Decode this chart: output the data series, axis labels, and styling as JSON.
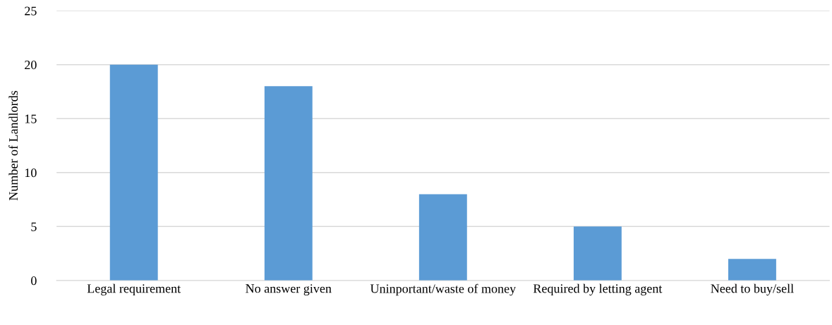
{
  "chart_data": {
    "type": "bar",
    "ylabel": "Number of Landlords",
    "categories": [
      "Legal requirement",
      "No answer given",
      "Uninportant/waste of money",
      "Required by letting agent",
      "Need to buy/sell"
    ],
    "values": [
      20,
      18,
      8,
      5,
      2
    ],
    "color": "#5b9bd5",
    "ylim": [
      0,
      25
    ],
    "yticks": [
      0,
      5,
      10,
      15,
      20,
      25
    ],
    "grid": "y"
  }
}
